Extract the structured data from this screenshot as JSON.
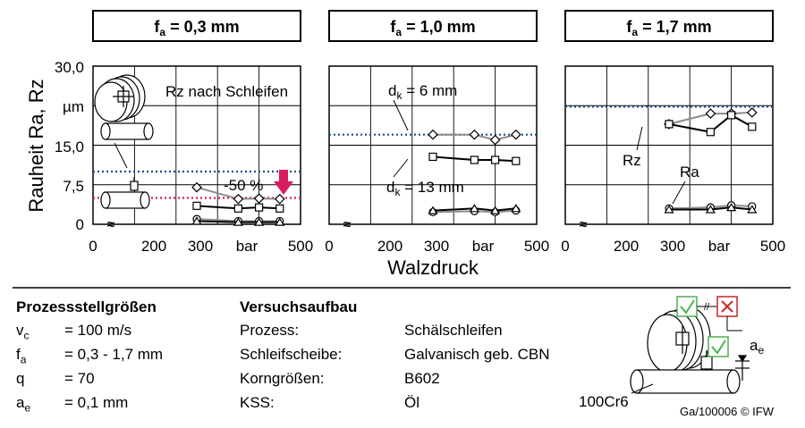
{
  "chart_data": [
    {
      "type": "line",
      "panel_title": {
        "main": "f",
        "sub": "a",
        "rest": " = 0,3 mm"
      },
      "xlim": [
        0,
        500
      ],
      "ylim": [
        0,
        30
      ],
      "x_ticks": [
        "0",
        "200",
        "300",
        "bar",
        "500"
      ],
      "series": [
        {
          "name": "Rz nach Schleifen",
          "style": "reference",
          "color": "#1f4e8c",
          "value": 10.0
        },
        {
          "name": "-50 %",
          "style": "reference",
          "color": "#d81b60",
          "value": 5.0
        },
        {
          "marker": "diamond",
          "color": "#8c8c8c",
          "x": [
            250,
            350,
            400,
            450
          ],
          "y": [
            7.0,
            4.8,
            4.9,
            4.8
          ]
        },
        {
          "marker": "square",
          "color": "#000000",
          "x": [
            250,
            350,
            400,
            450
          ],
          "y": [
            3.5,
            3.0,
            3.2,
            3.0
          ]
        },
        {
          "marker": "circle",
          "color": "#8c8c8c",
          "x": [
            250,
            350,
            400,
            450
          ],
          "y": [
            1.0,
            0.6,
            0.6,
            0.6
          ]
        },
        {
          "marker": "triangle",
          "color": "#000000",
          "x": [
            250,
            350,
            400,
            450
          ],
          "y": [
            0.6,
            0.4,
            0.4,
            0.4
          ]
        }
      ]
    },
    {
      "type": "line",
      "panel_title": {
        "main": "f",
        "sub": "a",
        "rest": " = 1,0 mm"
      },
      "xlim": [
        0,
        500
      ],
      "ylim": [
        0,
        30
      ],
      "x_ticks": [
        "0",
        "200",
        "300",
        "bar",
        "500"
      ],
      "series": [
        {
          "style": "reference",
          "color": "#1f4e8c",
          "value": 17.0
        },
        {
          "name": "dk = 6 mm",
          "marker": "diamond",
          "color": "#8c8c8c",
          "x": [
            250,
            350,
            400,
            450
          ],
          "y": [
            17.0,
            17.0,
            16.0,
            17.0
          ]
        },
        {
          "name": "dk = 13 mm",
          "marker": "square",
          "color": "#000000",
          "x": [
            250,
            350,
            400,
            450
          ],
          "y": [
            12.8,
            12.2,
            12.2,
            12.0
          ]
        },
        {
          "marker": "circle",
          "color": "#8c8c8c",
          "x": [
            250,
            350,
            400,
            450
          ],
          "y": [
            2.3,
            2.5,
            2.3,
            2.6
          ]
        },
        {
          "marker": "triangle",
          "color": "#000000",
          "x": [
            250,
            350,
            400,
            450
          ],
          "y": [
            2.6,
            3.0,
            2.6,
            3.0
          ]
        }
      ]
    },
    {
      "type": "line",
      "panel_title": {
        "main": "f",
        "sub": "a",
        "rest": " = 1,7 mm"
      },
      "xlim": [
        0,
        500
      ],
      "ylim": [
        0,
        30
      ],
      "x_ticks": [
        "0",
        "200",
        "300",
        "bar",
        "500"
      ],
      "series": [
        {
          "style": "reference",
          "color": "#1f4e8c",
          "value": 22.3
        },
        {
          "marker": "diamond",
          "color": "#8c8c8c",
          "x": [
            250,
            350,
            400,
            450
          ],
          "y": [
            19.0,
            21.0,
            21.0,
            21.2
          ]
        },
        {
          "name": "Rz",
          "marker": "square",
          "color": "#000000",
          "x": [
            250,
            350,
            400,
            450
          ],
          "y": [
            19.0,
            17.5,
            20.7,
            18.5
          ]
        },
        {
          "name": "Ra",
          "marker": "circle",
          "color": "#8c8c8c",
          "x": [
            250,
            350,
            400,
            450
          ],
          "y": [
            3.0,
            3.2,
            3.6,
            3.4
          ]
        },
        {
          "marker": "triangle",
          "color": "#000000",
          "x": [
            250,
            350,
            400,
            450
          ],
          "y": [
            2.8,
            2.8,
            3.2,
            2.8
          ]
        }
      ]
    }
  ],
  "axes": {
    "ylabel": "Rauheit Ra, Rz",
    "xlabel": "Walzdruck",
    "y_tick_labels": [
      "30,0",
      "µm",
      "15,0",
      "7,5",
      "0"
    ],
    "axis_break": "≈"
  },
  "annotations": {
    "rz_grind": "Rz nach Schleifen",
    "reduction": "-50 %",
    "dk6_main": "d",
    "dk6_sub": "k",
    "dk6_rest": " = 6 mm",
    "dk13_main": "d",
    "dk13_sub": "k",
    "dk13_rest": " = 13 mm",
    "rz": "Rz",
    "ra": "Ra"
  },
  "params": {
    "title": "Prozessstellgrößen",
    "rows": [
      {
        "sym": "v",
        "sub": "c",
        "val": "= 100 m/s"
      },
      {
        "sym": "f",
        "sub": "a",
        "val": "= 0,3 - 1,7 mm"
      },
      {
        "sym": "q",
        "sub": "",
        "val": "= 70"
      },
      {
        "sym": "a",
        "sub": "e",
        "val": "= 0,1 mm"
      }
    ]
  },
  "setup": {
    "title": "Versuchsaufbau",
    "rows": [
      {
        "label": "Prozess:",
        "val": "Schälschleifen"
      },
      {
        "label": "Schleifscheibe:",
        "val": "Galvanisch geb. CBN"
      },
      {
        "label": "Korngrößen:",
        "val": "B602"
      },
      {
        "label": "KSS:",
        "val": "Öl"
      }
    ]
  },
  "illustration": {
    "material": "100Cr6",
    "ae_main": "a",
    "ae_sub": "e",
    "check_color": "#4caf50",
    "cross_color": "#c62828"
  },
  "credit": "Ga/100006 © IFW"
}
